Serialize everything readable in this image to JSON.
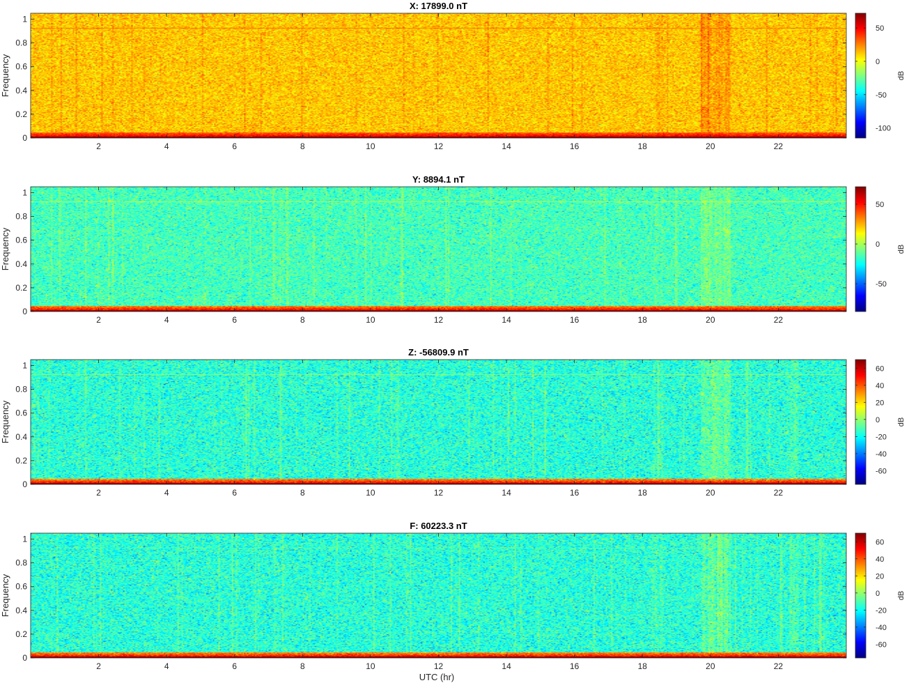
{
  "colors": {
    "colormap": "jet",
    "axis": "#262626",
    "background": "#ffffff"
  },
  "figure": {
    "xlabel": "UTC (hr)"
  },
  "chart_data": [
    {
      "type": "heatmap",
      "title": "X: 17899.0 nT",
      "ylabel": "Frequency",
      "xlim": [
        0,
        24
      ],
      "ylim": [
        0,
        1.05
      ],
      "xticks": [
        2,
        4,
        6,
        8,
        10,
        12,
        14,
        16,
        18,
        20,
        22
      ],
      "xtick_labels": [
        "2",
        "4",
        "6",
        "8",
        "10",
        "12",
        "14",
        "16",
        "18",
        "20",
        "22"
      ],
      "yticks": [
        0,
        0.2,
        0.4,
        0.6,
        0.8,
        1
      ],
      "ytick_labels": [
        "0",
        "0.2",
        "0.4",
        "0.6",
        "0.8",
        "1"
      ],
      "colorbar": {
        "label": "dB",
        "clim": [
          -115,
          72
        ],
        "ticks": [
          50,
          0,
          -50,
          -100
        ],
        "tick_labels": [
          "50",
          "0",
          "-50",
          "-100"
        ]
      },
      "background_db": 12,
      "line_db": 30,
      "line_freq": 0.93,
      "floor_db": 70
    },
    {
      "type": "heatmap",
      "title": "Y: 8894.1 nT",
      "ylabel": "Frequency",
      "xlim": [
        0,
        24
      ],
      "ylim": [
        0,
        1.05
      ],
      "xticks": [
        2,
        4,
        6,
        8,
        10,
        12,
        14,
        16,
        18,
        20,
        22
      ],
      "xtick_labels": [
        "2",
        "4",
        "6",
        "8",
        "10",
        "12",
        "14",
        "16",
        "18",
        "20",
        "22"
      ],
      "yticks": [
        0,
        0.2,
        0.4,
        0.6,
        0.8,
        1
      ],
      "ytick_labels": [
        "0",
        "0.2",
        "0.4",
        "0.6",
        "0.8",
        "1"
      ],
      "colorbar": {
        "label": "dB",
        "clim": [
          -85,
          72
        ],
        "ticks": [
          50,
          0,
          -50
        ],
        "tick_labels": [
          "50",
          "0",
          "-50"
        ]
      },
      "background_db": -16,
      "line_db": 2,
      "line_freq": 0.93,
      "floor_db": 70
    },
    {
      "type": "heatmap",
      "title": "Z: -56809.9 nT",
      "ylabel": "Frequency",
      "xlim": [
        0,
        24
      ],
      "ylim": [
        0,
        1.05
      ],
      "xticks": [
        2,
        4,
        6,
        8,
        10,
        12,
        14,
        16,
        18,
        20,
        22
      ],
      "xtick_labels": [
        "2",
        "4",
        "6",
        "8",
        "10",
        "12",
        "14",
        "16",
        "18",
        "20",
        "22"
      ],
      "yticks": [
        0,
        0.2,
        0.4,
        0.6,
        0.8,
        1
      ],
      "ytick_labels": [
        "0",
        "0.2",
        "0.4",
        "0.6",
        "0.8",
        "1"
      ],
      "colorbar": {
        "label": "dB",
        "clim": [
          -76,
          70
        ],
        "ticks": [
          60,
          40,
          20,
          0,
          -20,
          -40,
          -60
        ],
        "tick_labels": [
          "60",
          "40",
          "20",
          "0",
          "-20",
          "-40",
          "-60"
        ]
      },
      "background_db": -16,
      "line_db": 0,
      "line_freq": 0.93,
      "floor_db": 68
    },
    {
      "type": "heatmap",
      "title": "F: 60223.3 nT",
      "ylabel": "Frequency",
      "xlim": [
        0,
        24
      ],
      "ylim": [
        0,
        1.05
      ],
      "xticks": [
        2,
        4,
        6,
        8,
        10,
        12,
        14,
        16,
        18,
        20,
        22
      ],
      "xtick_labels": [
        "2",
        "4",
        "6",
        "8",
        "10",
        "12",
        "14",
        "16",
        "18",
        "20",
        "22"
      ],
      "yticks": [
        0,
        0.2,
        0.4,
        0.6,
        0.8,
        1
      ],
      "ytick_labels": [
        "0",
        "0.2",
        "0.4",
        "0.6",
        "0.8",
        "1"
      ],
      "colorbar": {
        "label": "dB",
        "clim": [
          -76,
          70
        ],
        "ticks": [
          60,
          40,
          20,
          0,
          -20,
          -40,
          -60
        ],
        "tick_labels": [
          "60",
          "40",
          "20",
          "0",
          "-20",
          "-40",
          "-60"
        ]
      },
      "background_db": -16,
      "line_db": -8,
      "line_freq": 0.93,
      "floor_db": 68
    }
  ]
}
